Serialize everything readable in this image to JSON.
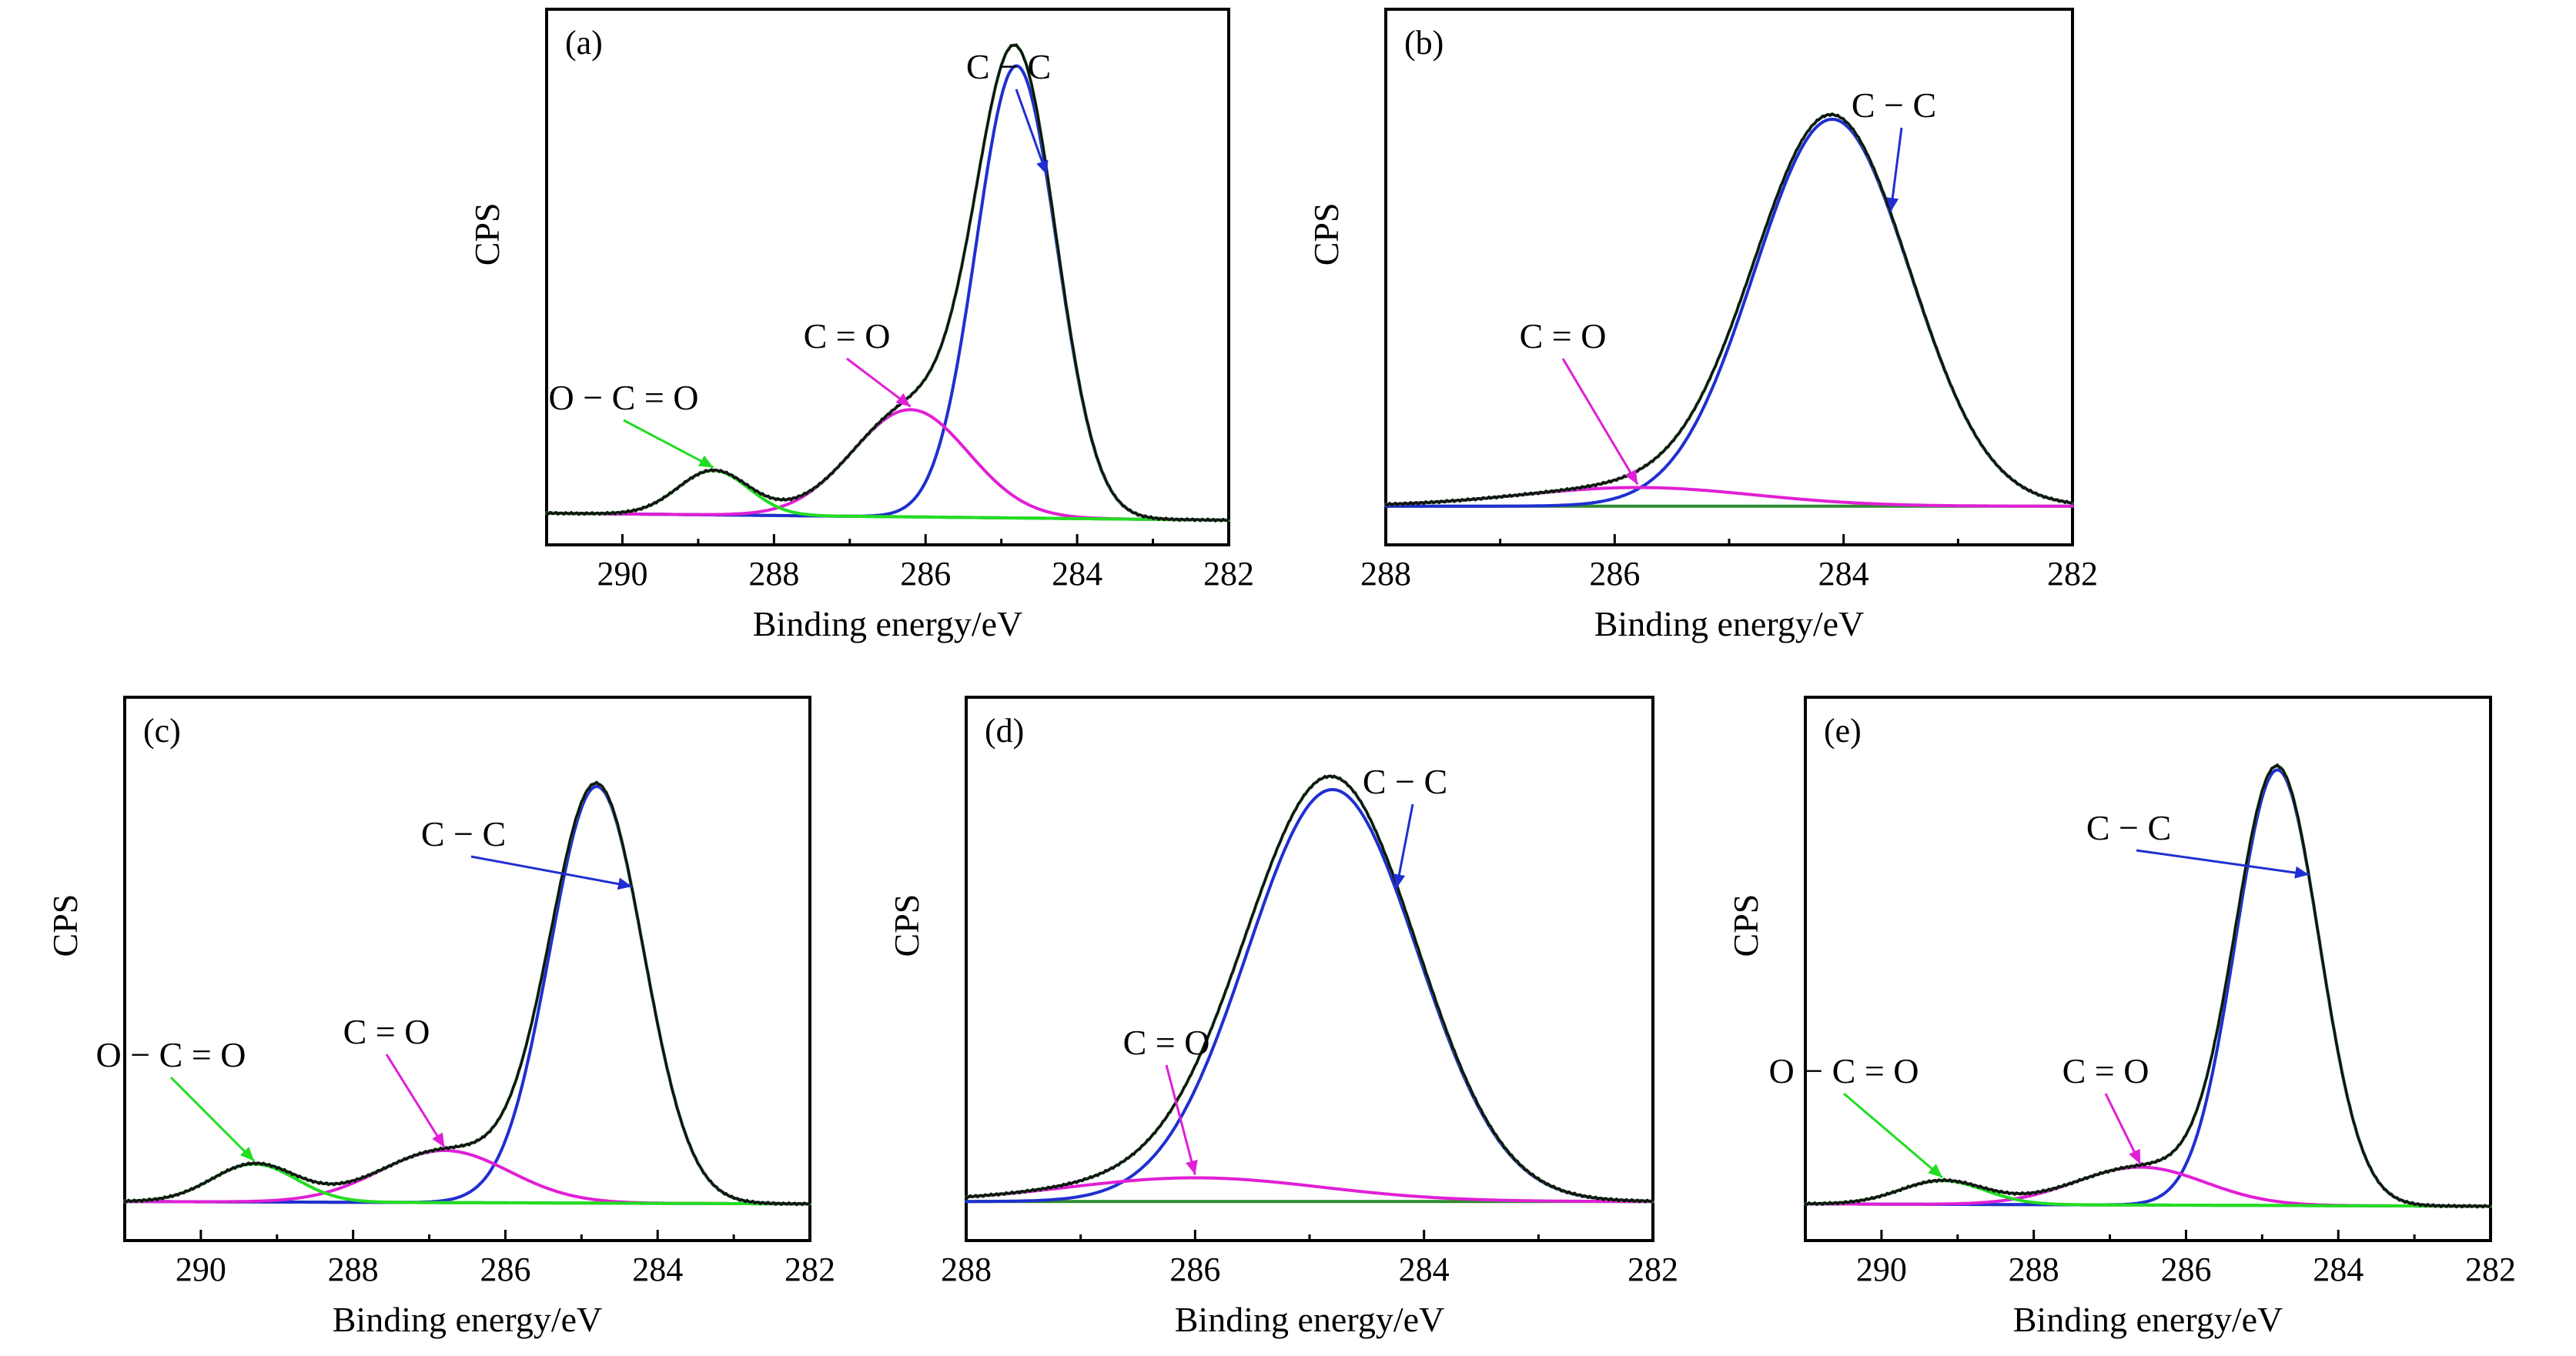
{
  "colors": {
    "measured": "#111111",
    "envelope": "#2e7d32",
    "cc": "#1f2fd0",
    "co": "#e01fd6",
    "oco": "#22dd22",
    "baseline": "#2e8b2e"
  },
  "chart_data": [
    {
      "id": "a",
      "type": "line",
      "panel_label": "(a)",
      "title": "",
      "xlabel": "Binding energy/eV",
      "ylabel": "CPS",
      "xlim": [
        291,
        282
      ],
      "ylim": [
        0,
        1.05
      ],
      "xticks": [
        290,
        288,
        286,
        284,
        282
      ],
      "xtick_labels": [
        "290",
        "288",
        "286",
        "284",
        "282"
      ],
      "baseline": [
        [
          291,
          0.035
        ],
        [
          282,
          0.02
        ]
      ],
      "components": [
        {
          "name": "C−C",
          "center": 284.8,
          "amplitude": 0.97,
          "fwhm": 1.25,
          "color": "cc"
        },
        {
          "name": "C=O",
          "center": 286.2,
          "amplitude": 0.23,
          "fwhm": 1.8,
          "color": "co"
        },
        {
          "name": "O−C=O",
          "center": 288.8,
          "amplitude": 0.095,
          "fwhm": 1.1,
          "color": "oco"
        }
      ],
      "annotations": [
        {
          "text": "C − C",
          "component": "C−C"
        },
        {
          "text": "C = O",
          "component": "C=O"
        },
        {
          "text": "O − C = O",
          "component": "O−C=O"
        }
      ]
    },
    {
      "id": "b",
      "type": "line",
      "panel_label": "(b)",
      "title": "",
      "xlabel": "Binding energy/eV",
      "ylabel": "CPS",
      "xlim": [
        288,
        282
      ],
      "ylim": [
        0,
        1.05
      ],
      "xticks": [
        288,
        286,
        284,
        282
      ],
      "xtick_labels": [
        "288",
        "286",
        "284",
        "282"
      ],
      "baseline": [
        [
          288,
          0.05
        ],
        [
          282,
          0.05
        ]
      ],
      "components": [
        {
          "name": "C−C",
          "center": 284.1,
          "amplitude": 0.83,
          "fwhm": 1.6,
          "color": "cc"
        },
        {
          "name": "C=O",
          "center": 285.8,
          "amplitude": 0.04,
          "fwhm": 2.4,
          "color": "co"
        }
      ],
      "annotations": [
        {
          "text": "C − C",
          "component": "C−C"
        },
        {
          "text": "C = O",
          "component": "C=O"
        }
      ]
    },
    {
      "id": "c",
      "type": "line",
      "panel_label": "(c)",
      "title": "",
      "xlabel": "Binding energy/eV",
      "ylabel": "CPS",
      "xlim": [
        291,
        282
      ],
      "ylim": [
        0,
        1.05
      ],
      "xticks": [
        290,
        288,
        286,
        284,
        282
      ],
      "xtick_labels": [
        "290",
        "288",
        "286",
        "284",
        "282"
      ],
      "baseline": [
        [
          291,
          0.05
        ],
        [
          282,
          0.045
        ]
      ],
      "components": [
        {
          "name": "C−C",
          "center": 284.8,
          "amplitude": 0.88,
          "fwhm": 1.45,
          "color": "cc"
        },
        {
          "name": "C=O",
          "center": 286.8,
          "amplitude": 0.11,
          "fwhm": 2.0,
          "color": "co"
        },
        {
          "name": "O−C=O",
          "center": 289.3,
          "amplitude": 0.08,
          "fwhm": 1.3,
          "color": "oco"
        }
      ],
      "annotations": [
        {
          "text": "C − C",
          "component": "C−C"
        },
        {
          "text": "C = O",
          "component": "C=O"
        },
        {
          "text": "O − C = O",
          "component": "O−C=O"
        }
      ]
    },
    {
      "id": "d",
      "type": "line",
      "panel_label": "(d)",
      "title": "",
      "xlabel": "Binding energy/eV",
      "ylabel": "CPS",
      "xlim": [
        288,
        282
      ],
      "ylim": [
        0,
        1.05
      ],
      "xticks": [
        288,
        286,
        284,
        282
      ],
      "xtick_labels": [
        "288",
        "286",
        "284",
        "282"
      ],
      "baseline": [
        [
          288,
          0.05
        ],
        [
          282,
          0.05
        ]
      ],
      "components": [
        {
          "name": "C−C",
          "center": 284.8,
          "amplitude": 0.87,
          "fwhm": 1.75,
          "color": "cc"
        },
        {
          "name": "C=O",
          "center": 286.0,
          "amplitude": 0.05,
          "fwhm": 2.6,
          "color": "co"
        }
      ],
      "annotations": [
        {
          "text": "C − C",
          "component": "C−C"
        },
        {
          "text": "C = O",
          "component": "C=O"
        }
      ]
    },
    {
      "id": "e",
      "type": "line",
      "panel_label": "(e)",
      "title": "",
      "xlabel": "Binding energy/eV",
      "ylabel": "CPS",
      "xlim": [
        291,
        282
      ],
      "ylim": [
        0,
        1.05
      ],
      "xticks": [
        290,
        288,
        286,
        284,
        282
      ],
      "xtick_labels": [
        "290",
        "288",
        "286",
        "284",
        "282"
      ],
      "baseline": [
        [
          291,
          0.045
        ],
        [
          282,
          0.04
        ]
      ],
      "components": [
        {
          "name": "C−C",
          "center": 284.8,
          "amplitude": 0.92,
          "fwhm": 1.3,
          "color": "cc"
        },
        {
          "name": "C=O",
          "center": 286.6,
          "amplitude": 0.08,
          "fwhm": 2.0,
          "color": "co"
        },
        {
          "name": "O−C=O",
          "center": 289.2,
          "amplitude": 0.05,
          "fwhm": 1.3,
          "color": "oco"
        }
      ],
      "annotations": [
        {
          "text": "C − C",
          "component": "C−C"
        },
        {
          "text": "C = O",
          "component": "C=O"
        },
        {
          "text": "O − C = O",
          "component": "O−C=O"
        }
      ]
    }
  ]
}
